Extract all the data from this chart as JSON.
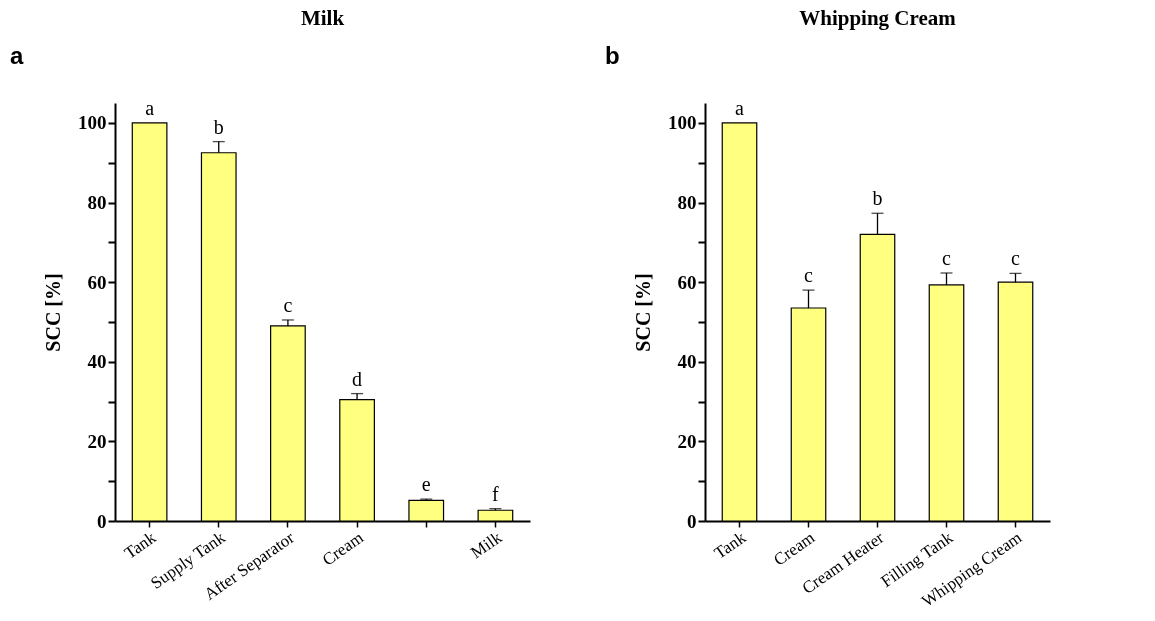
{
  "chart_data": [
    {
      "type": "bar",
      "title": "Milk",
      "ylabel": "SCC [%]",
      "categories": [
        "Tank",
        "Supply Tank",
        "After Separator",
        "Cream",
        null,
        "Milk"
      ],
      "values": [
        100,
        92.5,
        49,
        30.5,
        5.2,
        2.7
      ],
      "errors": [
        null,
        2.8,
        1.5,
        1.5,
        0.3,
        0.4
      ],
      "color": "#ffff80",
      "ylim": [
        0,
        105
      ],
      "yticks": [
        0,
        {
          "value": 10,
          "label": null
        },
        20,
        {
          "value": 30,
          "label": null
        },
        40,
        {
          "value": 50,
          "label": null
        },
        60,
        {
          "value": 70,
          "label": null
        },
        80,
        {
          "value": 90,
          "label": null
        },
        100
      ],
      "annotations": [
        "a",
        {
          "text": "a",
          "x": "Tank",
          "y": 100
        },
        {
          "text": "b",
          "x": "Supply Tank",
          "y": 95.3
        },
        {
          "text": "c",
          "x": "After Separator",
          "y": 50.5
        },
        {
          "text": "d",
          "x": "Cream",
          "y": 32
        },
        {
          "text": "e",
          "y": 5.5
        },
        {
          "text": "f",
          "x": "Milk",
          "y": 3.1
        }
      ]
    },
    {
      "type": "bar",
      "title": "Whipping Cream",
      "ylabel": "SCC [%]",
      "categories": [
        "Tank",
        "Cream",
        "Cream Heater",
        "Filling Tank",
        "Whipping Cream"
      ],
      "values": [
        100,
        53.5,
        72,
        59.3,
        60
      ],
      "errors": [
        null,
        4.5,
        5.3,
        3,
        2.2
      ],
      "color": "#ffff80",
      "ylim": [
        0,
        105
      ],
      "yticks": [
        0,
        {
          "value": 10,
          "label": null
        },
        20,
        {
          "value": 30,
          "label": null
        },
        40,
        {
          "value": 50,
          "label": null
        },
        60,
        {
          "value": 70,
          "label": null
        },
        80,
        {
          "value": 90,
          "label": null
        },
        100
      ],
      "annotations": [
        "b",
        {
          "text": "a",
          "x": "Tank",
          "y": 100
        },
        {
          "text": "c",
          "x": "Cream",
          "y": 58
        },
        {
          "text": "b",
          "x": "Cream Heater",
          "y": 77.3
        },
        {
          "text": "c",
          "x": "Filling Tank",
          "y": 62.3
        },
        {
          "text": "c",
          "x": "Whipping Cream",
          "y": 62.2
        }
      ]
    }
  ]
}
